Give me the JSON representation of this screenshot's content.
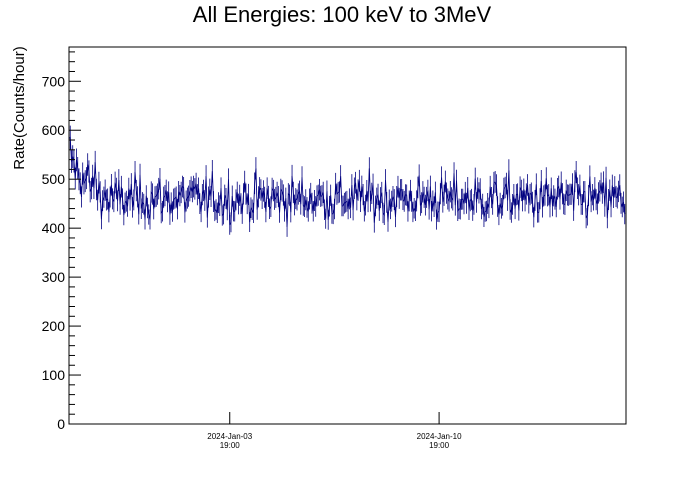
{
  "chart_data": {
    "type": "line",
    "title": "All Energies:  100 keV to 3MeV",
    "xlabel": "",
    "ylabel": "Rate(Counts/hour)",
    "ylim": [
      0,
      770
    ],
    "y_major_ticks": [
      0,
      100,
      200,
      300,
      400,
      500,
      600,
      700
    ],
    "y_tick_labels": [
      "0",
      "100",
      "200",
      "300",
      "400",
      "500",
      "600",
      "700"
    ],
    "xlim": [
      "2023-Dec-29 10:00",
      "2024-Jan-17 01:00"
    ],
    "x_ticks": [
      {
        "date": "2024-Jan-03 19:00",
        "line1": "2024-Jan-03",
        "line2": "19:00"
      },
      {
        "date": "2024-Jan-10 19:00",
        "line1": "2024-Jan-10",
        "line2": "19:00"
      }
    ],
    "series_color": "#000080",
    "grid": false,
    "legend": "none",
    "series": [
      {
        "x_start": "2023-Dec-29 10:00",
        "x_step_hours": 1,
        "y_nominal": 460,
        "y_spread_approx": 25,
        "values_sample": [
          540,
          575,
          520,
          500,
          490,
          480,
          470,
          465,
          460,
          455,
          470,
          460,
          450,
          445,
          460,
          470,
          480,
          455,
          440,
          465,
          500,
          520,
          490,
          470,
          455,
          460,
          445,
          450,
          465,
          470,
          460,
          455,
          450,
          460,
          470,
          465,
          455,
          445,
          440,
          450,
          460,
          470,
          480,
          470,
          460,
          455,
          440,
          430,
          445,
          460,
          470,
          485,
          475,
          460,
          455,
          450,
          445,
          460,
          470,
          490,
          480,
          465,
          455,
          450,
          460
        ]
      }
    ]
  }
}
